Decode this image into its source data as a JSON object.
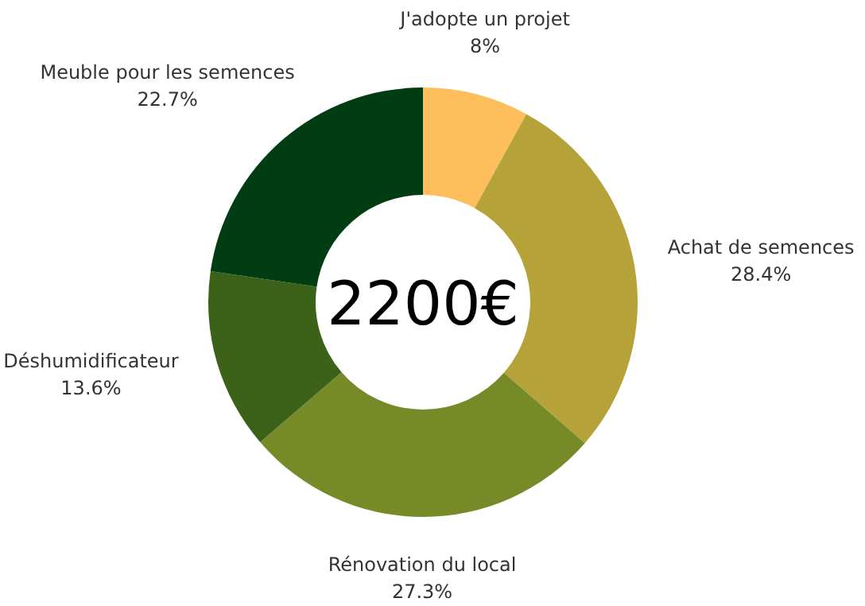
{
  "chart_data": {
    "type": "donut",
    "categories": [
      "J'adopte un projet",
      "Achat de semences",
      "Rénovation du local",
      "Déshumidificateur",
      "Meuble pour les semences"
    ],
    "values": [
      8,
      28.4,
      27.3,
      13.6,
      22.7
    ],
    "colors": [
      "#fdbe5b",
      "#b5a33a",
      "#778a28",
      "#3c6119",
      "#003d12"
    ],
    "value_labels": [
      "8%",
      "28.4%",
      "27.3%",
      "13.6%",
      "22.7%"
    ],
    "annotations": [
      "2200€"
    ],
    "legend": false
  }
}
